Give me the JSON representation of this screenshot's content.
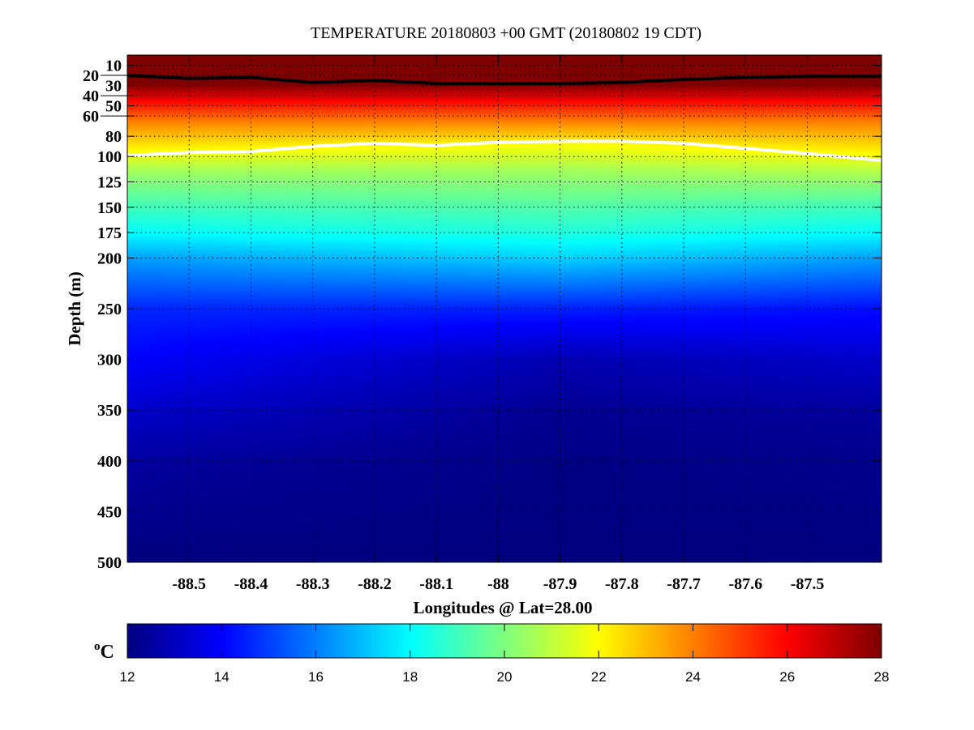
{
  "chart_data": {
    "type": "heatmap",
    "title": "TEMPERATURE 20180803 +00 GMT (20180802 19 CDT)",
    "xlabel": "Longitudes @ Lat=28.00",
    "ylabel": "Depth (m)",
    "xlim": [
      -88.6,
      -87.38
    ],
    "ylim": [
      0,
      500
    ],
    "y_reversed": true,
    "grid": true,
    "xticks": [
      -88.5,
      -88.4,
      -88.3,
      -88.2,
      -88.1,
      -88,
      -87.9,
      -87.8,
      -87.7,
      -87.6,
      -87.5
    ],
    "xtick_labels": [
      "-88.5",
      "-88.4",
      "-88.3",
      "-88.2",
      "-88.1",
      "-88",
      "-87.9",
      "-87.8",
      "-87.7",
      "-87.6",
      "-87.5"
    ],
    "yticks": [
      10,
      20,
      30,
      40,
      50,
      60,
      80,
      100,
      125,
      150,
      175,
      200,
      250,
      300,
      350,
      400,
      450,
      500
    ],
    "ytick_labels": [
      "10",
      "20",
      "30",
      "40",
      "50",
      "60",
      "80",
      "100",
      "125",
      "150",
      "175",
      "200",
      "250",
      "300",
      "350",
      "400",
      "450",
      "500"
    ],
    "colorbar": {
      "label": "oC",
      "label_main": "C",
      "label_sup": "o",
      "range": [
        12,
        28
      ],
      "ticks": [
        12,
        14,
        16,
        18,
        20,
        22,
        24,
        26,
        28
      ],
      "tick_labels": [
        "12",
        "14",
        "16",
        "18",
        "20",
        "22",
        "24",
        "26",
        "28"
      ],
      "colormap": "jet"
    },
    "temperature_profiles": {
      "depths": [
        0,
        25,
        45,
        65,
        90,
        115,
        150,
        175,
        200,
        250,
        300,
        350,
        400,
        500
      ],
      "lons": [
        -88.6,
        -87.9,
        -87.38
      ],
      "values": [
        [
          29,
          28.5,
          26,
          24,
          22.3,
          20.5,
          19,
          18,
          16.5,
          14.6,
          14.0,
          13.2,
          12.5,
          12
        ],
        [
          29,
          28.5,
          26,
          24,
          21.8,
          20.5,
          19.3,
          18.5,
          17.3,
          14.5,
          12.8,
          12.3,
          12.1,
          12
        ],
        [
          29,
          28.5,
          26,
          24,
          22.5,
          20.8,
          19,
          18,
          16.5,
          14.2,
          13.2,
          12.5,
          12.2,
          12
        ]
      ]
    },
    "contours": [
      {
        "color": "#000000",
        "lons": [
          -88.6,
          -88.5,
          -88.4,
          -88.3,
          -88.2,
          -88.1,
          -88.0,
          -87.9,
          -87.8,
          -87.7,
          -87.6,
          -87.5,
          -87.38
        ],
        "depths": [
          20,
          23,
          22,
          27,
          25,
          28,
          28,
          28,
          27,
          24,
          22,
          21,
          21
        ]
      },
      {
        "color": "#ffffff",
        "lons": [
          -88.6,
          -88.5,
          -88.4,
          -88.3,
          -88.2,
          -88.1,
          -88.0,
          -87.9,
          -87.8,
          -87.7,
          -87.6,
          -87.5,
          -87.38
        ],
        "depths": [
          99,
          96,
          95,
          90,
          87,
          89,
          86,
          85,
          85,
          87,
          92,
          97,
          104
        ]
      }
    ]
  }
}
